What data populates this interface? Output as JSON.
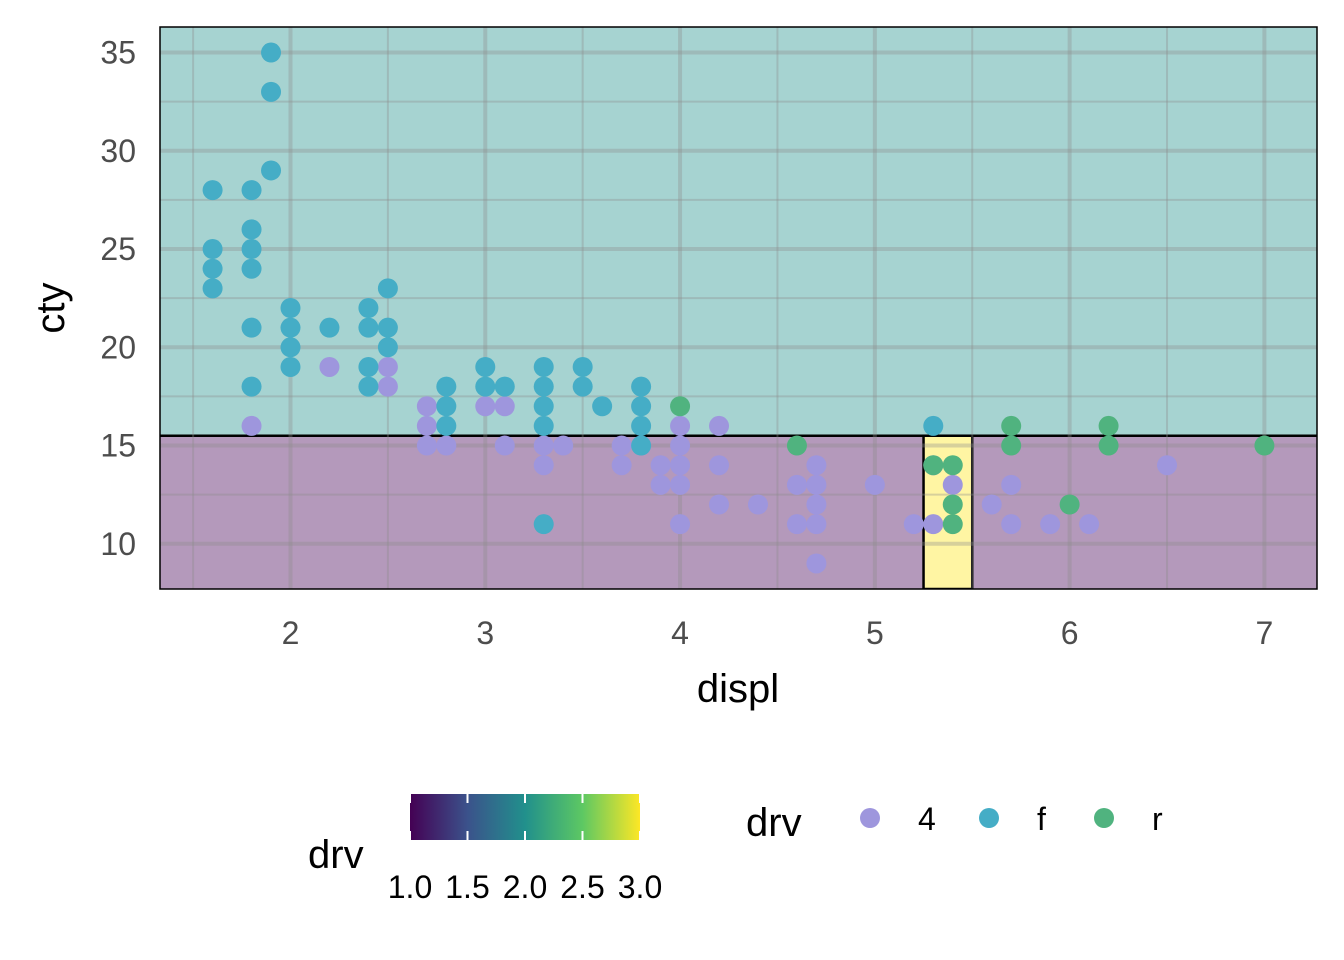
{
  "chart_data": {
    "type": "scatter",
    "title": "",
    "xlabel": "displ",
    "ylabel": "cty",
    "xlim": [
      1.33,
      7.27
    ],
    "ylim": [
      7.7,
      36.3
    ],
    "x_ticks": [
      2,
      3,
      4,
      5,
      6,
      7
    ],
    "y_ticks": [
      10,
      15,
      20,
      25,
      30,
      35
    ],
    "grid": true,
    "background_regions": [
      {
        "fill_value": 1.0,
        "x0": 1.33,
        "x1": 7.27,
        "y0": 7.7,
        "y1": 15.5,
        "color": "#440154"
      },
      {
        "fill_value": 2.0,
        "x0": 1.33,
        "x1": 7.27,
        "y0": 15.5,
        "y1": 36.3,
        "color": "#21908C"
      },
      {
        "fill_value": 3.0,
        "x0": 5.25,
        "x1": 5.5,
        "y0": 7.7,
        "y1": 15.5,
        "color": "#FDE725"
      }
    ],
    "series": [
      {
        "name": "4",
        "color": "#9E96DD",
        "points": [
          [
            1.8,
            16
          ],
          [
            2.2,
            19
          ],
          [
            2.5,
            19
          ],
          [
            2.5,
            18
          ],
          [
            2.7,
            17
          ],
          [
            2.7,
            16
          ],
          [
            2.7,
            15
          ],
          [
            2.8,
            15
          ],
          [
            3.0,
            17
          ],
          [
            3.1,
            17
          ],
          [
            3.1,
            15
          ],
          [
            3.3,
            15
          ],
          [
            3.3,
            14
          ],
          [
            3.4,
            15
          ],
          [
            3.7,
            15
          ],
          [
            3.7,
            14
          ],
          [
            3.8,
            15
          ],
          [
            3.9,
            14
          ],
          [
            3.9,
            13
          ],
          [
            4.0,
            16
          ],
          [
            4.0,
            15
          ],
          [
            4.0,
            14
          ],
          [
            4.0,
            13
          ],
          [
            4.0,
            11
          ],
          [
            4.2,
            16
          ],
          [
            4.2,
            14
          ],
          [
            4.2,
            12
          ],
          [
            4.4,
            12
          ],
          [
            4.6,
            13
          ],
          [
            4.6,
            11
          ],
          [
            4.7,
            14
          ],
          [
            4.7,
            13
          ],
          [
            4.7,
            12
          ],
          [
            4.7,
            11
          ],
          [
            4.7,
            9
          ],
          [
            5.0,
            13
          ],
          [
            5.2,
            11
          ],
          [
            5.3,
            14
          ],
          [
            5.3,
            11
          ],
          [
            5.4,
            13
          ],
          [
            5.6,
            12
          ],
          [
            5.7,
            13
          ],
          [
            5.7,
            11
          ],
          [
            5.9,
            11
          ],
          [
            6.1,
            11
          ],
          [
            6.5,
            14
          ]
        ]
      },
      {
        "name": "f",
        "color": "#45ADC6",
        "points": [
          [
            1.6,
            28
          ],
          [
            1.6,
            25
          ],
          [
            1.6,
            24
          ],
          [
            1.6,
            23
          ],
          [
            1.8,
            28
          ],
          [
            1.8,
            26
          ],
          [
            1.8,
            25
          ],
          [
            1.8,
            24
          ],
          [
            1.8,
            21
          ],
          [
            1.8,
            18
          ],
          [
            1.9,
            35
          ],
          [
            1.9,
            33
          ],
          [
            1.9,
            29
          ],
          [
            2.0,
            22
          ],
          [
            2.0,
            21
          ],
          [
            2.0,
            20
          ],
          [
            2.0,
            19
          ],
          [
            2.2,
            21
          ],
          [
            2.4,
            22
          ],
          [
            2.4,
            21
          ],
          [
            2.4,
            19
          ],
          [
            2.4,
            18
          ],
          [
            2.5,
            23
          ],
          [
            2.5,
            21
          ],
          [
            2.5,
            20
          ],
          [
            2.8,
            18
          ],
          [
            2.8,
            17
          ],
          [
            2.8,
            16
          ],
          [
            3.0,
            19
          ],
          [
            3.0,
            18
          ],
          [
            3.1,
            18
          ],
          [
            3.3,
            19
          ],
          [
            3.3,
            18
          ],
          [
            3.3,
            17
          ],
          [
            3.3,
            16
          ],
          [
            3.3,
            11
          ],
          [
            3.5,
            19
          ],
          [
            3.5,
            18
          ],
          [
            3.6,
            17
          ],
          [
            3.8,
            18
          ],
          [
            3.8,
            17
          ],
          [
            3.8,
            16
          ],
          [
            3.8,
            15
          ],
          [
            5.3,
            16
          ]
        ]
      },
      {
        "name": "r",
        "color": "#50B37F",
        "points": [
          [
            4.0,
            17
          ],
          [
            4.6,
            15
          ],
          [
            5.3,
            14
          ],
          [
            5.4,
            14
          ],
          [
            5.4,
            12
          ],
          [
            5.4,
            11
          ],
          [
            5.7,
            16
          ],
          [
            5.7,
            15
          ],
          [
            6.0,
            12
          ],
          [
            6.2,
            16
          ],
          [
            6.2,
            15
          ],
          [
            7.0,
            15
          ]
        ]
      }
    ],
    "legends": [
      {
        "type": "colorbar",
        "title": "drv",
        "tick_labels": [
          "1.0",
          "1.5",
          "2.0",
          "2.5",
          "3.0"
        ],
        "range": [
          1,
          3
        ]
      },
      {
        "type": "points",
        "title": "drv",
        "entries": [
          "4",
          "f",
          "r"
        ]
      }
    ],
    "legend_position": "bottom"
  }
}
